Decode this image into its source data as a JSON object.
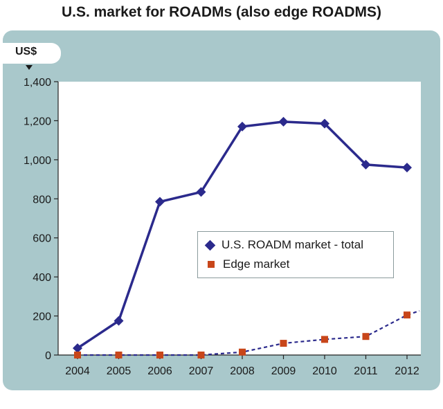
{
  "chart_data": {
    "type": "line",
    "title": "U.S. market for ROADMs (also edge ROADMS)",
    "ylabel": "US$",
    "categories": [
      "2004",
      "2005",
      "2006",
      "2007",
      "2008",
      "2009",
      "2010",
      "2011",
      "2012"
    ],
    "ylim": [
      0,
      1400
    ],
    "yticks": [
      "0",
      "200",
      "400",
      "600",
      "800",
      "1,000",
      "1,200",
      "1,400"
    ],
    "ytick_values": [
      0,
      200,
      400,
      600,
      800,
      1000,
      1200,
      1400
    ],
    "grid": false,
    "legend_position": "center-right",
    "series": [
      {
        "name": "U.S. ROADM market - total",
        "values": [
          35,
          175,
          785,
          835,
          1170,
          1195,
          1185,
          975,
          960
        ],
        "color": "#2b2a8c",
        "marker": "diamond",
        "line_style": "solid"
      },
      {
        "name": "Edge market",
        "values": [
          0,
          0,
          0,
          0,
          15,
          60,
          80,
          95,
          205
        ],
        "color": "#c8461a",
        "line_color": "#2b2a8c",
        "marker": "square",
        "line_style": "dashed"
      }
    ]
  },
  "colors": {
    "panel": "#a9c8cb",
    "plot_background": "#ffffff",
    "total_series": "#2b2a8c",
    "edge_series": "#c8461a"
  }
}
